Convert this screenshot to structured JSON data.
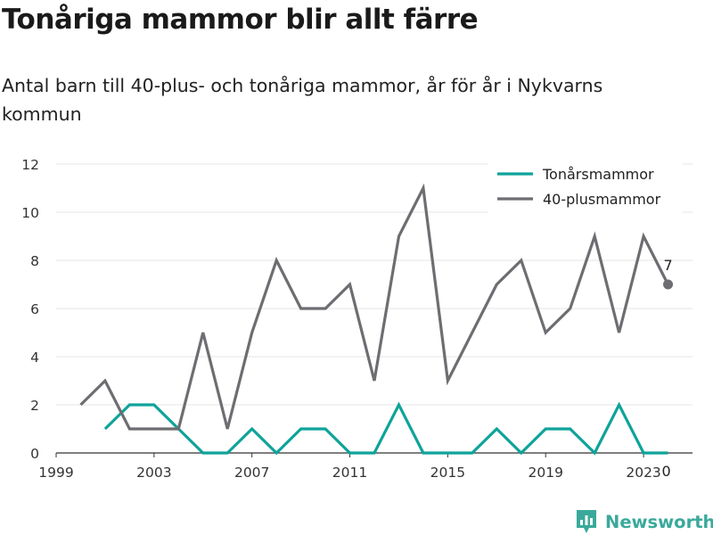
{
  "header": {
    "title": "Tonåriga mammor blir allt färre",
    "subtitle": "Antal barn till 40-plus- och tonåriga mammor, år för år i Nykvarns kommun"
  },
  "brand": {
    "name": "Newsworthy",
    "color": "#3aa99b"
  },
  "chart_data": {
    "type": "line",
    "title": "Tonåriga mammor blir allt färre",
    "subtitle": "Antal barn till 40-plus- och tonåriga mammor, år för år i Nykvarns kommun",
    "xlim": [
      1999,
      2025
    ],
    "ylim": [
      0,
      12
    ],
    "x_ticks": [
      1999,
      2003,
      2007,
      2011,
      2015,
      2019,
      2023
    ],
    "y_ticks": [
      0,
      2,
      4,
      6,
      8,
      10,
      12
    ],
    "grid": true,
    "legend_position": "top-right",
    "series": [
      {
        "name": "Tonårsmammor",
        "color": "#0fa39a",
        "x": [
          2001,
          2002,
          2003,
          2004,
          2005,
          2006,
          2007,
          2008,
          2009,
          2010,
          2011,
          2012,
          2013,
          2014,
          2015,
          2016,
          2017,
          2018,
          2019,
          2020,
          2021,
          2022,
          2023,
          2024
        ],
        "values": [
          1,
          2,
          2,
          1,
          0,
          0,
          1,
          0,
          1,
          1,
          0,
          0,
          2,
          0,
          0,
          0,
          1,
          0,
          1,
          1,
          0,
          2,
          0,
          0
        ],
        "end_label": "0"
      },
      {
        "name": "40-plusmammor",
        "color": "#6d6d72",
        "x": [
          2000,
          2001,
          2002,
          2003,
          2004,
          2005,
          2006,
          2007,
          2008,
          2009,
          2010,
          2011,
          2012,
          2013,
          2014,
          2015,
          2016,
          2017,
          2018,
          2019,
          2020,
          2021,
          2022,
          2023,
          2024
        ],
        "values": [
          2,
          3,
          1,
          1,
          1,
          5,
          1,
          5,
          8,
          6,
          6,
          7,
          3,
          9,
          11,
          3,
          5,
          7,
          8,
          5,
          6,
          9,
          5,
          9,
          7
        ],
        "end_label": "7"
      }
    ]
  }
}
